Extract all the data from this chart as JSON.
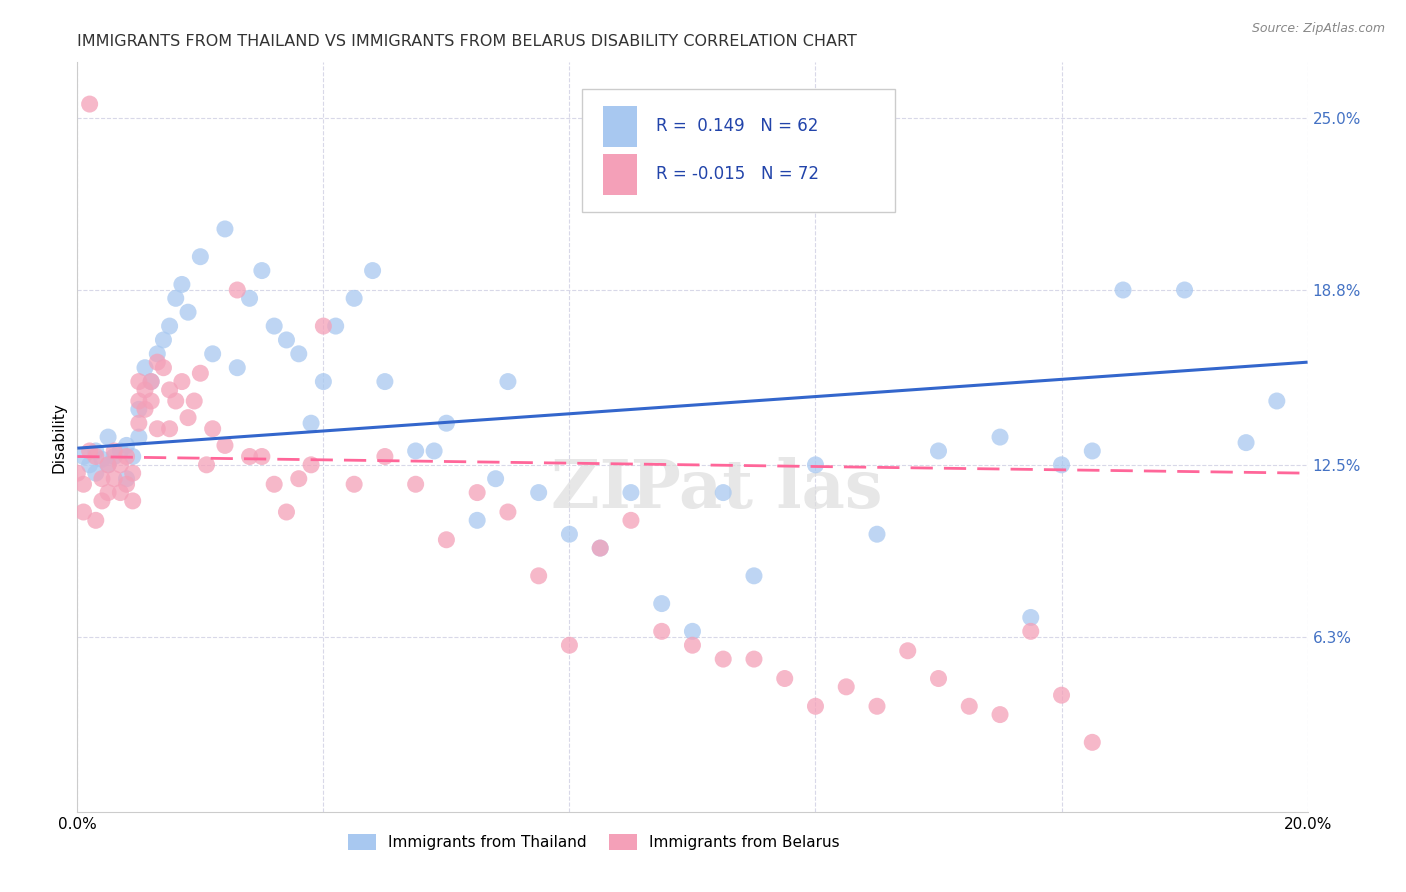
{
  "title": "IMMIGRANTS FROM THAILAND VS IMMIGRANTS FROM BELARUS DISABILITY CORRELATION CHART",
  "source": "Source: ZipAtlas.com",
  "ylabel": "Disability",
  "x_min": 0.0,
  "x_max": 0.2,
  "y_min": 0.0,
  "y_max": 0.27,
  "x_ticks": [
    0.0,
    0.04,
    0.08,
    0.12,
    0.16,
    0.2
  ],
  "x_tick_labels": [
    "0.0%",
    "",
    "",
    "",
    "",
    "20.0%"
  ],
  "y_tick_labels_right": [
    "25.0%",
    "18.8%",
    "12.5%",
    "6.3%"
  ],
  "y_tick_vals_right": [
    0.25,
    0.188,
    0.125,
    0.063
  ],
  "color_thailand": "#A8C8F0",
  "color_belarus": "#F4A0B8",
  "line_color_thailand": "#3366CC",
  "line_color_belarus": "#FF6699",
  "R_thailand": 0.149,
  "N_thailand": 62,
  "R_belarus": -0.015,
  "N_belarus": 72,
  "background_color": "#FFFFFF",
  "grid_color": "#D8D8E8",
  "title_fontsize": 11.5,
  "axis_label_fontsize": 11,
  "tick_fontsize": 11,
  "watermark_text": "ZIPat las",
  "th_line_y0": 0.131,
  "th_line_y1": 0.162,
  "be_line_y0": 0.128,
  "be_line_y1": 0.122
}
